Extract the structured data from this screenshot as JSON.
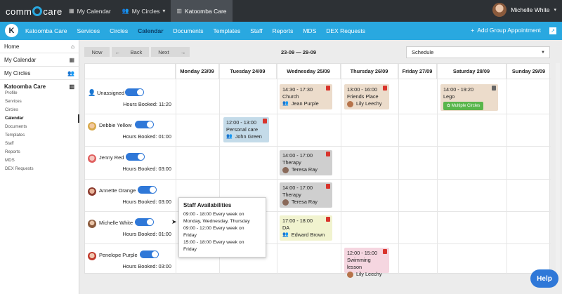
{
  "topbar": {
    "logo_text": "comm care",
    "nav": [
      {
        "icon": "calendar-icon",
        "label": "My Calendar"
      },
      {
        "icon": "people-icon",
        "label": "My Circles"
      },
      {
        "icon": "building-icon",
        "label": "Katoomba Care"
      }
    ],
    "user_name": "Michelle White"
  },
  "mainnav": {
    "org_initial": "K",
    "items": [
      "Katoomba Care",
      "Services",
      "Circles",
      "Calendar",
      "Documents",
      "Templates",
      "Staff",
      "Reports",
      "MDS",
      "DEX Requests"
    ],
    "active": "Calendar",
    "add_group": "Add Group Appointment"
  },
  "sidebar": {
    "items": [
      {
        "label": "Home",
        "icon": "home-icon"
      },
      {
        "label": "My Calendar",
        "icon": "calendar-icon"
      },
      {
        "label": "My Circles",
        "icon": "people-icon"
      },
      {
        "label": "Katoomba Care",
        "icon": "building-icon"
      }
    ],
    "subitems": [
      "Profile",
      "Services",
      "Circles",
      "Calendar",
      "Documents",
      "Templates",
      "Staff",
      "Reports",
      "MDS",
      "DEX Requests"
    ],
    "active_sub": "Calendar"
  },
  "controls": {
    "now": "Now",
    "back": "Back",
    "next": "Next",
    "date_range": "23-09 — 29-09",
    "view": "Schedule"
  },
  "calendar": {
    "days": [
      "Monday 23/09",
      "Tuesday 24/09",
      "Wednesday 25/09",
      "Thursday 26/09",
      "Friday 27/09",
      "Saturday 28/09",
      "Sunday 29/09"
    ],
    "hours_label": "Hours Booked:",
    "staff": [
      {
        "name": "Unassigned",
        "hours": "11:20"
      },
      {
        "name": "Debbie Yellow",
        "hours": "01:00"
      },
      {
        "name": "Jenny Red",
        "hours": "03:00"
      },
      {
        "name": "Annette Orange",
        "hours": "03:00"
      },
      {
        "name": "Michelle White",
        "hours": "01:00"
      },
      {
        "name": "Penelope Purple",
        "hours": "03:00"
      }
    ],
    "events": [
      {
        "time": "14:30 - 17:30",
        "title": "Church",
        "who": "Jean Purple"
      },
      {
        "time": "13:00 - 16:00",
        "title": "Friends Place",
        "who": "Lily Leechy"
      },
      {
        "time": "14:00 - 19:20",
        "title": "Lego",
        "who": "Multiple Circles"
      },
      {
        "time": "12:00 - 13:00",
        "title": "Personal care",
        "who": "John Green"
      },
      {
        "time": "14:00 - 17:00",
        "title": "Therapy",
        "who": "Teresa Ray"
      },
      {
        "time": "14:00 - 17:00",
        "title": "Therapy",
        "who": "Teresa Ray"
      },
      {
        "time": "17:00 - 18:00",
        "title": "DA",
        "who": "Edward Brown"
      },
      {
        "time": "12:00 - 15:00",
        "title": "Swimming lesson",
        "who": "Lily Leechy"
      }
    ]
  },
  "tooltip": {
    "title": "Staff Availabilities",
    "lines": [
      "09:00 - 18:00  Every week on",
      "Monday, Wednesday, Thursday",
      "09:00 - 12:00  Every week on",
      "Friday",
      "15:00 - 18:00  Every week on",
      "Friday"
    ]
  },
  "help": "Help"
}
